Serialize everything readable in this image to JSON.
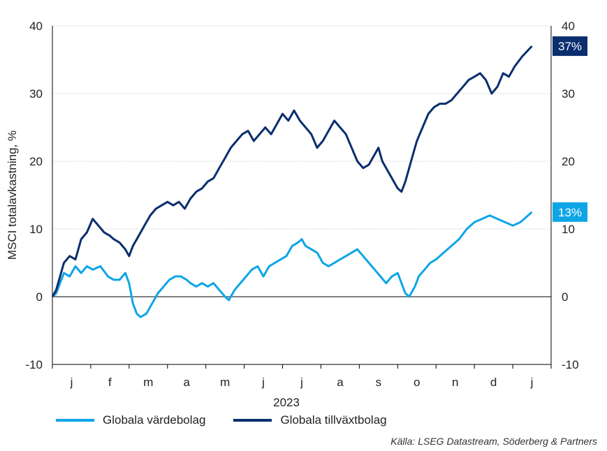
{
  "chart_data": {
    "type": "line",
    "ylabel": "MSCI totalavkastning, %",
    "xlabel": "2023",
    "ylim": [
      -10,
      40
    ],
    "yticks": [
      -10,
      0,
      10,
      20,
      30,
      40
    ],
    "y2ticks": [
      -10,
      0,
      10,
      20,
      30,
      40
    ],
    "grid": "horizontal dotted",
    "legend_position": "bottom",
    "month_labels": [
      "j",
      "f",
      "m",
      "a",
      "m",
      "j",
      "j",
      "a",
      "s",
      "o",
      "n",
      "d",
      "j"
    ],
    "x_start": 0,
    "x_end": 13,
    "series": [
      {
        "name": "Globala värdebolag",
        "color": "#0ea5e6",
        "end_label": "13%",
        "points": [
          [
            0,
            0
          ],
          [
            0.1,
            0.5
          ],
          [
            0.2,
            2
          ],
          [
            0.3,
            3.5
          ],
          [
            0.45,
            3
          ],
          [
            0.6,
            4.5
          ],
          [
            0.75,
            3.5
          ],
          [
            0.9,
            4.5
          ],
          [
            1.05,
            4
          ],
          [
            1.25,
            4.5
          ],
          [
            1.45,
            3
          ],
          [
            1.6,
            2.5
          ],
          [
            1.75,
            2.5
          ],
          [
            1.9,
            3.5
          ],
          [
            2.0,
            2
          ],
          [
            2.1,
            -1
          ],
          [
            2.2,
            -2.5
          ],
          [
            2.3,
            -3
          ],
          [
            2.45,
            -2.5
          ],
          [
            2.6,
            -1
          ],
          [
            2.75,
            0.5
          ],
          [
            2.9,
            1.5
          ],
          [
            3.05,
            2.5
          ],
          [
            3.2,
            3
          ],
          [
            3.35,
            3
          ],
          [
            3.5,
            2.5
          ],
          [
            3.6,
            2
          ],
          [
            3.75,
            1.5
          ],
          [
            3.9,
            2
          ],
          [
            4.05,
            1.5
          ],
          [
            4.2,
            2
          ],
          [
            4.35,
            1
          ],
          [
            4.5,
            0
          ],
          [
            4.6,
            -0.5
          ],
          [
            4.75,
            1
          ],
          [
            4.9,
            2
          ],
          [
            5.05,
            3
          ],
          [
            5.2,
            4
          ],
          [
            5.35,
            4.5
          ],
          [
            5.5,
            3
          ],
          [
            5.65,
            4.5
          ],
          [
            5.8,
            5
          ],
          [
            5.95,
            5.5
          ],
          [
            6.1,
            6
          ],
          [
            6.25,
            7.5
          ],
          [
            6.4,
            8
          ],
          [
            6.5,
            8.5
          ],
          [
            6.6,
            7.5
          ],
          [
            6.75,
            7
          ],
          [
            6.9,
            6.5
          ],
          [
            7.05,
            5
          ],
          [
            7.2,
            4.5
          ],
          [
            7.35,
            5
          ],
          [
            7.5,
            5.5
          ],
          [
            7.65,
            6
          ],
          [
            7.8,
            6.5
          ],
          [
            7.95,
            7
          ],
          [
            8.1,
            6
          ],
          [
            8.25,
            5
          ],
          [
            8.4,
            4
          ],
          [
            8.55,
            3
          ],
          [
            8.7,
            2
          ],
          [
            8.85,
            3
          ],
          [
            9.0,
            3.5
          ],
          [
            9.1,
            2
          ],
          [
            9.2,
            0.5
          ],
          [
            9.3,
            0
          ],
          [
            9.45,
            1.5
          ],
          [
            9.55,
            3
          ],
          [
            9.7,
            4
          ],
          [
            9.85,
            5
          ],
          [
            10.0,
            5.5
          ],
          [
            10.2,
            6.5
          ],
          [
            10.4,
            7.5
          ],
          [
            10.6,
            8.5
          ],
          [
            10.8,
            10
          ],
          [
            11.0,
            11
          ],
          [
            11.2,
            11.5
          ],
          [
            11.4,
            12
          ],
          [
            11.6,
            11.5
          ],
          [
            11.8,
            11
          ],
          [
            12.0,
            10.5
          ],
          [
            12.2,
            11
          ],
          [
            12.5,
            12.5
          ]
        ]
      },
      {
        "name": "Globala tillväxtbolag",
        "color": "#0a2e6e",
        "end_label": "37%",
        "points": [
          [
            0,
            0
          ],
          [
            0.1,
            1
          ],
          [
            0.2,
            3
          ],
          [
            0.3,
            5
          ],
          [
            0.45,
            6
          ],
          [
            0.6,
            5.5
          ],
          [
            0.75,
            8.5
          ],
          [
            0.9,
            9.5
          ],
          [
            1.05,
            11.5
          ],
          [
            1.2,
            10.5
          ],
          [
            1.35,
            9.5
          ],
          [
            1.5,
            9
          ],
          [
            1.6,
            8.5
          ],
          [
            1.75,
            8
          ],
          [
            1.9,
            7
          ],
          [
            2.0,
            6
          ],
          [
            2.1,
            7.5
          ],
          [
            2.25,
            9
          ],
          [
            2.4,
            10.5
          ],
          [
            2.55,
            12
          ],
          [
            2.7,
            13
          ],
          [
            2.85,
            13.5
          ],
          [
            3.0,
            14
          ],
          [
            3.15,
            13.5
          ],
          [
            3.3,
            14
          ],
          [
            3.45,
            13
          ],
          [
            3.6,
            14.5
          ],
          [
            3.75,
            15.5
          ],
          [
            3.9,
            16
          ],
          [
            4.05,
            17
          ],
          [
            4.2,
            17.5
          ],
          [
            4.35,
            19
          ],
          [
            4.5,
            20.5
          ],
          [
            4.65,
            22
          ],
          [
            4.8,
            23
          ],
          [
            4.95,
            24
          ],
          [
            5.1,
            24.5
          ],
          [
            5.25,
            23
          ],
          [
            5.4,
            24
          ],
          [
            5.55,
            25
          ],
          [
            5.7,
            24
          ],
          [
            5.85,
            25.5
          ],
          [
            6.0,
            27
          ],
          [
            6.15,
            26
          ],
          [
            6.3,
            27.5
          ],
          [
            6.45,
            26
          ],
          [
            6.6,
            25
          ],
          [
            6.75,
            24
          ],
          [
            6.9,
            22
          ],
          [
            7.05,
            23
          ],
          [
            7.2,
            24.5
          ],
          [
            7.35,
            26
          ],
          [
            7.5,
            25
          ],
          [
            7.65,
            24
          ],
          [
            7.8,
            22
          ],
          [
            7.95,
            20
          ],
          [
            8.1,
            19
          ],
          [
            8.25,
            19.5
          ],
          [
            8.4,
            21
          ],
          [
            8.5,
            22
          ],
          [
            8.6,
            20
          ],
          [
            8.75,
            18.5
          ],
          [
            8.9,
            17
          ],
          [
            9.0,
            16
          ],
          [
            9.1,
            15.5
          ],
          [
            9.2,
            17
          ],
          [
            9.35,
            20
          ],
          [
            9.5,
            23
          ],
          [
            9.65,
            25
          ],
          [
            9.8,
            27
          ],
          [
            9.95,
            28
          ],
          [
            10.1,
            28.5
          ],
          [
            10.25,
            28.5
          ],
          [
            10.4,
            29
          ],
          [
            10.55,
            30
          ],
          [
            10.7,
            31
          ],
          [
            10.85,
            32
          ],
          [
            11.0,
            32.5
          ],
          [
            11.15,
            33
          ],
          [
            11.3,
            32
          ],
          [
            11.45,
            30
          ],
          [
            11.6,
            31
          ],
          [
            11.75,
            33
          ],
          [
            11.9,
            32.5
          ],
          [
            12.05,
            34
          ],
          [
            12.25,
            35.5
          ],
          [
            12.5,
            37
          ]
        ]
      }
    ],
    "source": "Källa: LSEG Datastream, Söderberg & Partners"
  }
}
